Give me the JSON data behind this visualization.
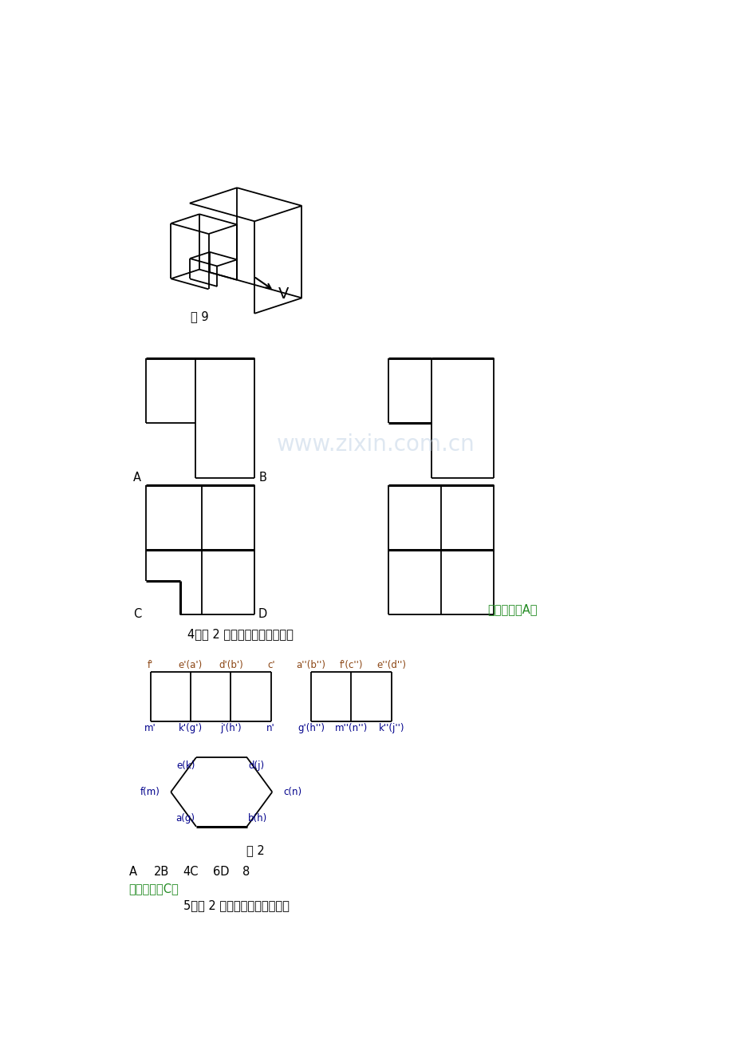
{
  "bg_color": "#ffffff",
  "fig9_label": "图 9",
  "v_label": "V",
  "ref_answer_3": "参考答案：A；",
  "question4": "4．图 2 中，铅垂面应为（）个",
  "ref_answer_4": "参考答案：C；",
  "question5": "5．图 2 中，侧锥线应为（）条",
  "fig2_label": "图 2",
  "watermark": "www.zixin.com.cn",
  "top_labels_left": [
    "f'",
    "e'(a')",
    "d'(b')",
    "c'"
  ],
  "top_labels_right": [
    "a''(b'')",
    "f'(c'')",
    "e''(d'')"
  ],
  "bottom_labels_left": [
    "m'",
    "k'(g')",
    "j'(h')",
    "n'"
  ],
  "bottom_labels_right": [
    "g'(h'')",
    "m''(n'')",
    "k''(j'')"
  ],
  "options4_A": "A",
  "options4_2B": "2B",
  "options4_4C": "4C",
  "options4_6D": "6D",
  "options4_8": "8"
}
